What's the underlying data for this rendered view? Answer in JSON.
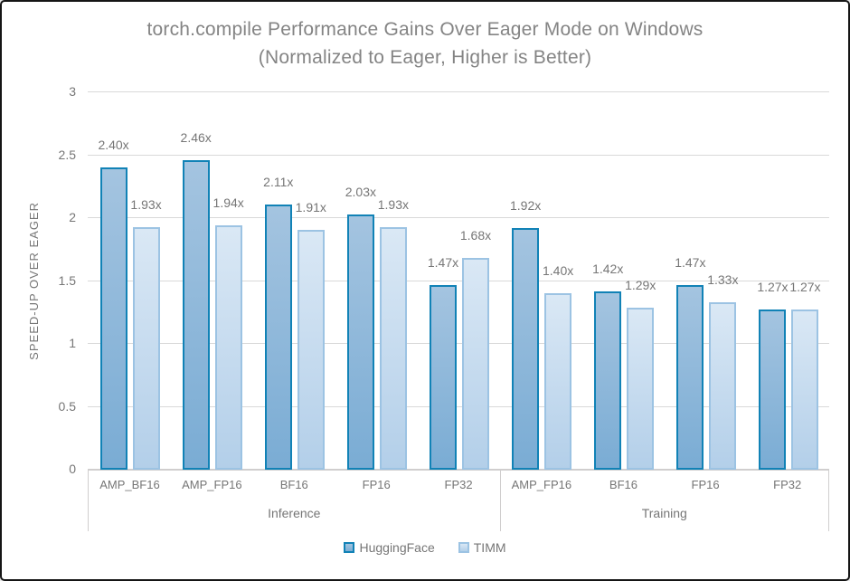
{
  "chart_data": {
    "type": "bar",
    "title": "torch.compile Performance Gains Over Eager Mode on Windows",
    "subtitle": "(Normalized to Eager, Higher is Better)",
    "ylabel": "SPEED-UP OVER EAGER",
    "ylim": [
      0,
      3
    ],
    "yticks": [
      0,
      0.5,
      1,
      1.5,
      2,
      2.5,
      3
    ],
    "grid": true,
    "legend_position": "bottom",
    "groups": [
      {
        "label": "Inference",
        "categories": [
          "AMP_BF16",
          "AMP_FP16",
          "BF16",
          "FP16",
          "FP32"
        ]
      },
      {
        "label": "Training",
        "categories": [
          "AMP_FP16",
          "BF16",
          "FP16",
          "FP32"
        ]
      }
    ],
    "series": [
      {
        "name": "HuggingFace",
        "values": [
          2.4,
          2.46,
          2.11,
          2.03,
          1.47,
          1.92,
          1.42,
          1.47,
          1.27
        ],
        "labels": [
          "2.40x",
          "2.46x",
          "2.11x",
          "2.03x",
          "1.47x",
          "1.92x",
          "1.42x",
          "1.47x",
          "1.27x"
        ],
        "fill_top": "#A4C4E0",
        "fill_bottom": "#7AACD4",
        "border": "#1182B6"
      },
      {
        "name": "TIMM",
        "values": [
          1.93,
          1.94,
          1.91,
          1.93,
          1.68,
          1.4,
          1.29,
          1.33,
          1.27
        ],
        "labels": [
          "1.93x",
          "1.94x",
          "1.91x",
          "1.93x",
          "1.68x",
          "1.40x",
          "1.29x",
          "1.33x",
          "1.27x"
        ],
        "fill_top": "#DAE8F5",
        "fill_bottom": "#B3CFE9",
        "border": "#9CC3E3"
      }
    ],
    "colors": {
      "gridline": "#D9D9D9",
      "axis_line": "#D0CECE",
      "text": "#767676",
      "title_text": "#848484",
      "background": "#FFFFFF",
      "frame_border": "#151515"
    }
  }
}
